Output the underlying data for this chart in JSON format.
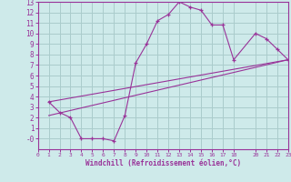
{
  "xlabel": "Windchill (Refroidissement éolien,°C)",
  "bg_color": "#ceeaea",
  "grid_color": "#aacccc",
  "line_color": "#993399",
  "line1_x": [
    1,
    2,
    3,
    4,
    5,
    6,
    7,
    8,
    9,
    10,
    11,
    12,
    13,
    14,
    15,
    16,
    17,
    18,
    20,
    21,
    22,
    23
  ],
  "line1_y": [
    3.5,
    2.5,
    2.0,
    0.0,
    0.0,
    0.0,
    -0.2,
    2.2,
    7.2,
    9.0,
    11.2,
    11.8,
    13.0,
    12.5,
    12.2,
    10.8,
    10.8,
    7.5,
    10.0,
    9.5,
    8.5,
    7.5
  ],
  "line2_x": [
    1,
    23
  ],
  "line2_y": [
    3.5,
    7.5
  ],
  "line3_x": [
    1,
    23
  ],
  "line3_y": [
    2.2,
    7.5
  ],
  "xmin": 0,
  "xmax": 23,
  "ymin": -1,
  "ymax": 13,
  "xticks": [
    0,
    1,
    2,
    3,
    4,
    5,
    6,
    7,
    8,
    9,
    10,
    11,
    12,
    13,
    14,
    15,
    16,
    17,
    18,
    20,
    21,
    22,
    23
  ],
  "yticks": [
    0,
    1,
    2,
    3,
    4,
    5,
    6,
    7,
    8,
    9,
    10,
    11,
    12,
    13
  ],
  "ytick_labels": [
    "-0",
    "1",
    "2",
    "3",
    "4",
    "5",
    "6",
    "7",
    "8",
    "9",
    "10",
    "11",
    "12",
    "13"
  ]
}
